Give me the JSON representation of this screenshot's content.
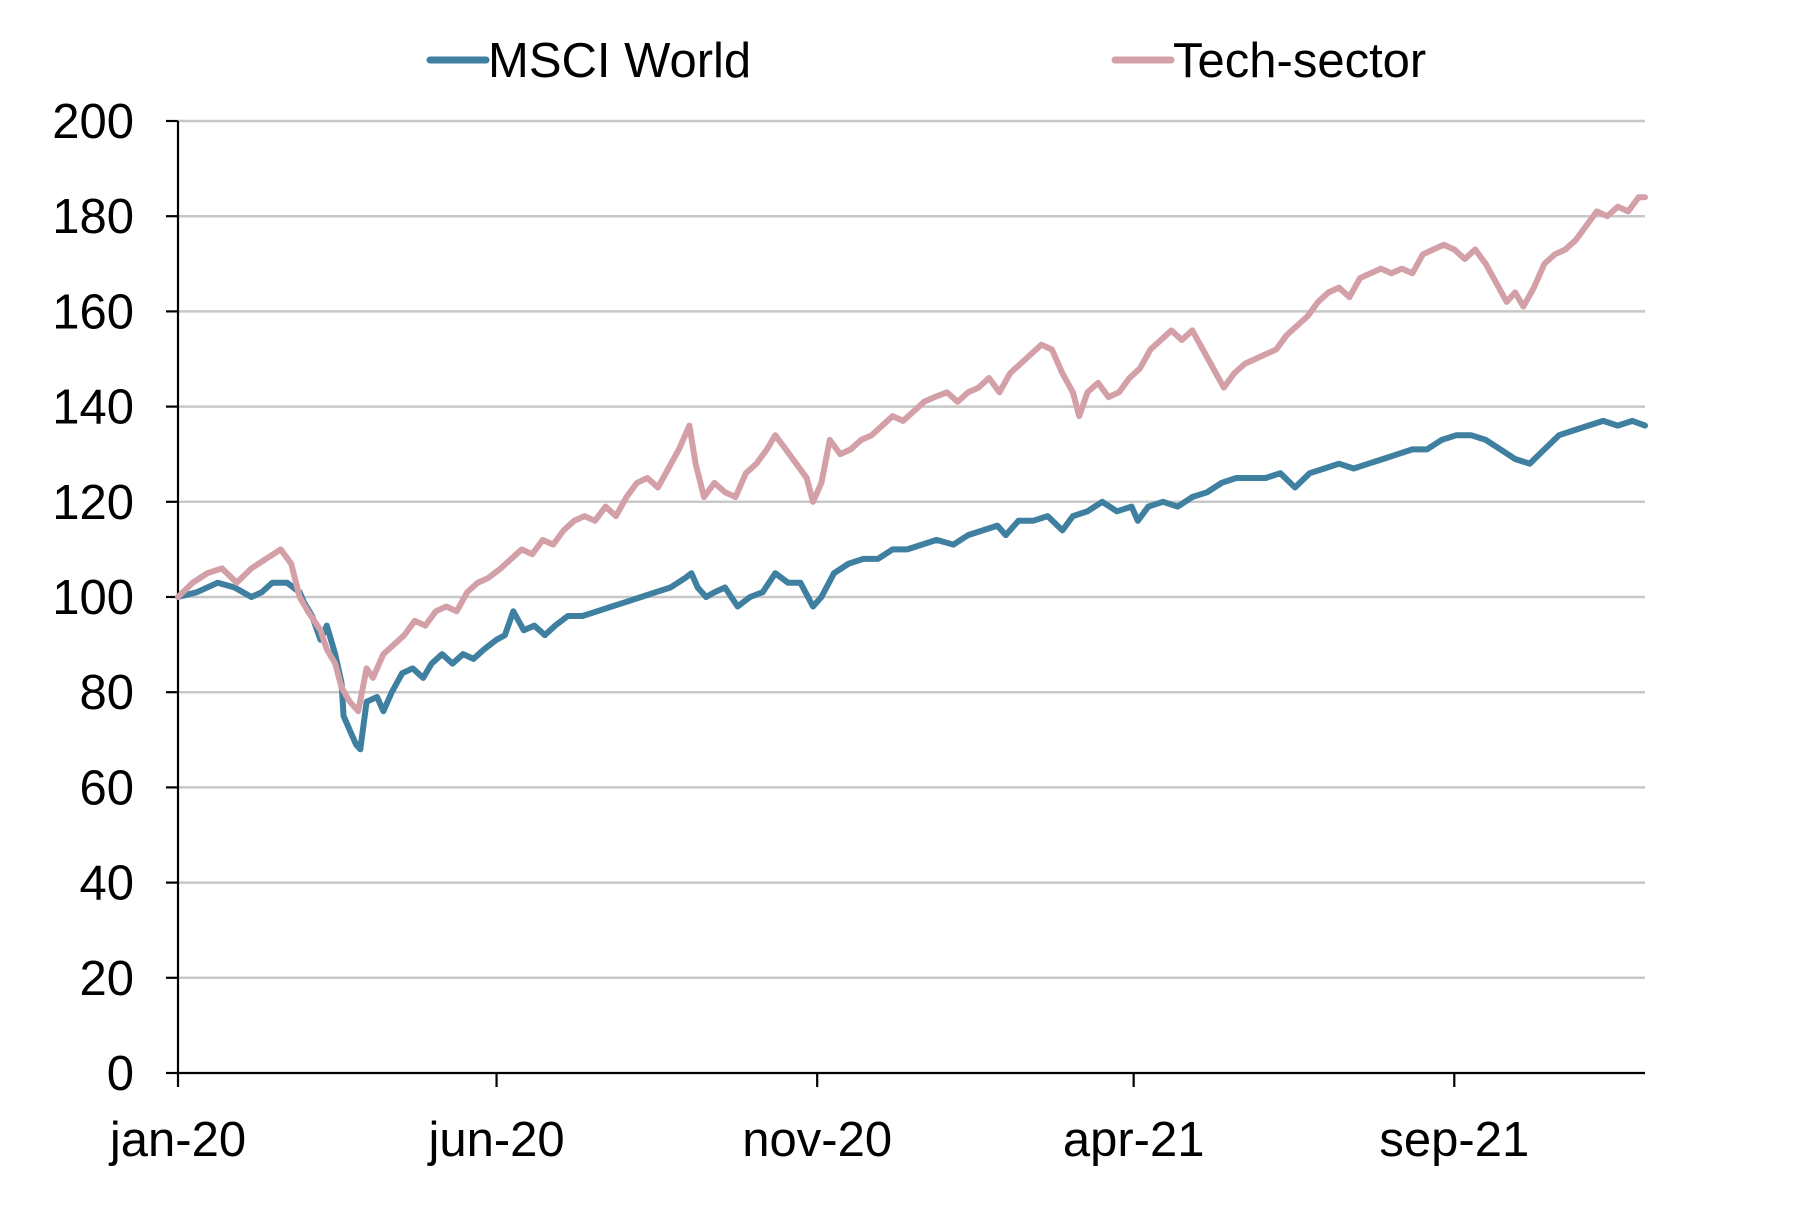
{
  "chart_data": {
    "type": "line",
    "title": "",
    "xlabel": "",
    "ylabel": "",
    "ylim": [
      0,
      200
    ],
    "y_ticks": [
      0,
      20,
      40,
      60,
      80,
      100,
      120,
      140,
      160,
      180,
      200
    ],
    "y_tick_labels": [
      "0",
      "20",
      "40",
      "60",
      "80",
      "100",
      "120",
      "140",
      "160",
      "180",
      "200"
    ],
    "xlim": [
      "2020-01-01",
      "2021-12-01"
    ],
    "x_ticks": [
      "2020-01-01",
      "2020-06-01",
      "2020-11-01",
      "2021-04-01",
      "2021-09-01"
    ],
    "x_tick_labels": [
      "jan-20",
      "jun-20",
      "nov-20",
      "apr-21",
      "sep-21"
    ],
    "grid": "horizontal",
    "legend": "top",
    "series": [
      {
        "name": "MSCI World",
        "color": "#3f7fa0",
        "points": [
          [
            "2020-01-01",
            100
          ],
          [
            "2020-01-10",
            101
          ],
          [
            "2020-01-20",
            103
          ],
          [
            "2020-01-28",
            102
          ],
          [
            "2020-02-05",
            100
          ],
          [
            "2020-02-10",
            101
          ],
          [
            "2020-02-15",
            103
          ],
          [
            "2020-02-22",
            103
          ],
          [
            "2020-02-28",
            101
          ],
          [
            "2020-03-01",
            99
          ],
          [
            "2020-03-05",
            96
          ],
          [
            "2020-03-09",
            91
          ],
          [
            "2020-03-12",
            94
          ],
          [
            "2020-03-16",
            88
          ],
          [
            "2020-03-19",
            82
          ],
          [
            "2020-03-20",
            75
          ],
          [
            "2020-03-23",
            72
          ],
          [
            "2020-03-26",
            69
          ],
          [
            "2020-03-28",
            68
          ],
          [
            "2020-03-31",
            78
          ],
          [
            "2020-04-05",
            79
          ],
          [
            "2020-04-08",
            76
          ],
          [
            "2020-04-12",
            80
          ],
          [
            "2020-04-17",
            84
          ],
          [
            "2020-04-22",
            85
          ],
          [
            "2020-04-27",
            83
          ],
          [
            "2020-05-01",
            86
          ],
          [
            "2020-05-06",
            88
          ],
          [
            "2020-05-11",
            86
          ],
          [
            "2020-05-16",
            88
          ],
          [
            "2020-05-21",
            87
          ],
          [
            "2020-05-26",
            89
          ],
          [
            "2020-06-01",
            91
          ],
          [
            "2020-06-05",
            92
          ],
          [
            "2020-06-09",
            97
          ],
          [
            "2020-06-14",
            93
          ],
          [
            "2020-06-19",
            94
          ],
          [
            "2020-06-24",
            92
          ],
          [
            "2020-06-29",
            94
          ],
          [
            "2020-07-05",
            96
          ],
          [
            "2020-07-12",
            96
          ],
          [
            "2020-07-19",
            97
          ],
          [
            "2020-07-26",
            98
          ],
          [
            "2020-08-02",
            99
          ],
          [
            "2020-08-09",
            100
          ],
          [
            "2020-08-16",
            101
          ],
          [
            "2020-08-23",
            102
          ],
          [
            "2020-08-30",
            104
          ],
          [
            "2020-09-02",
            105
          ],
          [
            "2020-09-05",
            102
          ],
          [
            "2020-09-09",
            100
          ],
          [
            "2020-09-13",
            101
          ],
          [
            "2020-09-18",
            102
          ],
          [
            "2020-09-24",
            98
          ],
          [
            "2020-09-30",
            100
          ],
          [
            "2020-10-06",
            101
          ],
          [
            "2020-10-12",
            105
          ],
          [
            "2020-10-18",
            103
          ],
          [
            "2020-10-24",
            103
          ],
          [
            "2020-10-30",
            98
          ],
          [
            "2020-11-03",
            100
          ],
          [
            "2020-11-09",
            105
          ],
          [
            "2020-11-16",
            107
          ],
          [
            "2020-11-23",
            108
          ],
          [
            "2020-11-30",
            108
          ],
          [
            "2020-12-07",
            110
          ],
          [
            "2020-12-14",
            110
          ],
          [
            "2020-12-21",
            111
          ],
          [
            "2020-12-28",
            112
          ],
          [
            "2021-01-05",
            111
          ],
          [
            "2021-01-12",
            113
          ],
          [
            "2021-01-19",
            114
          ],
          [
            "2021-01-26",
            115
          ],
          [
            "2021-01-30",
            113
          ],
          [
            "2021-02-05",
            116
          ],
          [
            "2021-02-12",
            116
          ],
          [
            "2021-02-19",
            117
          ],
          [
            "2021-02-26",
            114
          ],
          [
            "2021-03-03",
            117
          ],
          [
            "2021-03-10",
            118
          ],
          [
            "2021-03-17",
            120
          ],
          [
            "2021-03-24",
            118
          ],
          [
            "2021-03-31",
            119
          ],
          [
            "2021-04-03",
            116
          ],
          [
            "2021-04-08",
            119
          ],
          [
            "2021-04-15",
            120
          ],
          [
            "2021-04-22",
            119
          ],
          [
            "2021-04-29",
            121
          ],
          [
            "2021-05-06",
            122
          ],
          [
            "2021-05-13",
            124
          ],
          [
            "2021-05-20",
            125
          ],
          [
            "2021-05-27",
            125
          ],
          [
            "2021-06-03",
            125
          ],
          [
            "2021-06-10",
            126
          ],
          [
            "2021-06-17",
            123
          ],
          [
            "2021-06-24",
            126
          ],
          [
            "2021-07-01",
            127
          ],
          [
            "2021-07-08",
            128
          ],
          [
            "2021-07-15",
            127
          ],
          [
            "2021-07-22",
            128
          ],
          [
            "2021-07-29",
            129
          ],
          [
            "2021-08-05",
            130
          ],
          [
            "2021-08-12",
            131
          ],
          [
            "2021-08-19",
            131
          ],
          [
            "2021-08-26",
            133
          ],
          [
            "2021-09-02",
            134
          ],
          [
            "2021-09-09",
            134
          ],
          [
            "2021-09-16",
            133
          ],
          [
            "2021-09-23",
            131
          ],
          [
            "2021-09-30",
            129
          ],
          [
            "2021-10-07",
            128
          ],
          [
            "2021-10-14",
            131
          ],
          [
            "2021-10-21",
            134
          ],
          [
            "2021-10-28",
            135
          ],
          [
            "2021-11-04",
            136
          ],
          [
            "2021-11-11",
            137
          ],
          [
            "2021-11-18",
            136
          ],
          [
            "2021-11-25",
            137
          ],
          [
            "2021-12-01",
            136
          ]
        ]
      },
      {
        "name": "Tech-sector",
        "color": "#d4a0a8",
        "points": [
          [
            "2020-01-01",
            100
          ],
          [
            "2020-01-08",
            103
          ],
          [
            "2020-01-15",
            105
          ],
          [
            "2020-01-22",
            106
          ],
          [
            "2020-01-29",
            103
          ],
          [
            "2020-02-05",
            106
          ],
          [
            "2020-02-12",
            108
          ],
          [
            "2020-02-19",
            110
          ],
          [
            "2020-02-24",
            107
          ],
          [
            "2020-02-28",
            100
          ],
          [
            "2020-03-03",
            97
          ],
          [
            "2020-03-06",
            95
          ],
          [
            "2020-03-09",
            93
          ],
          [
            "2020-03-12",
            89
          ],
          [
            "2020-03-16",
            86
          ],
          [
            "2020-03-19",
            81
          ],
          [
            "2020-03-23",
            78
          ],
          [
            "2020-03-27",
            76
          ],
          [
            "2020-03-31",
            85
          ],
          [
            "2020-04-03",
            83
          ],
          [
            "2020-04-08",
            88
          ],
          [
            "2020-04-13",
            90
          ],
          [
            "2020-04-18",
            92
          ],
          [
            "2020-04-23",
            95
          ],
          [
            "2020-04-28",
            94
          ],
          [
            "2020-05-03",
            97
          ],
          [
            "2020-05-08",
            98
          ],
          [
            "2020-05-13",
            97
          ],
          [
            "2020-05-18",
            101
          ],
          [
            "2020-05-23",
            103
          ],
          [
            "2020-05-28",
            104
          ],
          [
            "2020-06-03",
            106
          ],
          [
            "2020-06-08",
            108
          ],
          [
            "2020-06-13",
            110
          ],
          [
            "2020-06-18",
            109
          ],
          [
            "2020-06-23",
            112
          ],
          [
            "2020-06-28",
            111
          ],
          [
            "2020-07-03",
            114
          ],
          [
            "2020-07-08",
            116
          ],
          [
            "2020-07-13",
            117
          ],
          [
            "2020-07-18",
            116
          ],
          [
            "2020-07-23",
            119
          ],
          [
            "2020-07-28",
            117
          ],
          [
            "2020-08-02",
            121
          ],
          [
            "2020-08-07",
            124
          ],
          [
            "2020-08-12",
            125
          ],
          [
            "2020-08-17",
            123
          ],
          [
            "2020-08-22",
            127
          ],
          [
            "2020-08-27",
            131
          ],
          [
            "2020-09-01",
            136
          ],
          [
            "2020-09-04",
            128
          ],
          [
            "2020-09-08",
            121
          ],
          [
            "2020-09-13",
            124
          ],
          [
            "2020-09-18",
            122
          ],
          [
            "2020-09-23",
            121
          ],
          [
            "2020-09-28",
            126
          ],
          [
            "2020-10-03",
            128
          ],
          [
            "2020-10-08",
            131
          ],
          [
            "2020-10-12",
            134
          ],
          [
            "2020-10-17",
            131
          ],
          [
            "2020-10-22",
            128
          ],
          [
            "2020-10-27",
            125
          ],
          [
            "2020-10-30",
            120
          ],
          [
            "2020-11-03",
            124
          ],
          [
            "2020-11-07",
            133
          ],
          [
            "2020-11-12",
            130
          ],
          [
            "2020-11-17",
            131
          ],
          [
            "2020-11-22",
            133
          ],
          [
            "2020-11-27",
            134
          ],
          [
            "2020-12-02",
            136
          ],
          [
            "2020-12-07",
            138
          ],
          [
            "2020-12-12",
            137
          ],
          [
            "2020-12-17",
            139
          ],
          [
            "2020-12-22",
            141
          ],
          [
            "2020-12-27",
            142
          ],
          [
            "2021-01-02",
            143
          ],
          [
            "2021-01-07",
            141
          ],
          [
            "2021-01-12",
            143
          ],
          [
            "2021-01-17",
            144
          ],
          [
            "2021-01-22",
            146
          ],
          [
            "2021-01-27",
            143
          ],
          [
            "2021-02-01",
            147
          ],
          [
            "2021-02-06",
            149
          ],
          [
            "2021-02-11",
            151
          ],
          [
            "2021-02-16",
            153
          ],
          [
            "2021-02-21",
            152
          ],
          [
            "2021-02-26",
            147
          ],
          [
            "2021-03-03",
            143
          ],
          [
            "2021-03-06",
            138
          ],
          [
            "2021-03-10",
            143
          ],
          [
            "2021-03-15",
            145
          ],
          [
            "2021-03-20",
            142
          ],
          [
            "2021-03-25",
            143
          ],
          [
            "2021-03-30",
            146
          ],
          [
            "2021-04-04",
            148
          ],
          [
            "2021-04-09",
            152
          ],
          [
            "2021-04-14",
            154
          ],
          [
            "2021-04-19",
            156
          ],
          [
            "2021-04-24",
            154
          ],
          [
            "2021-04-29",
            156
          ],
          [
            "2021-05-04",
            152
          ],
          [
            "2021-05-09",
            148
          ],
          [
            "2021-05-14",
            144
          ],
          [
            "2021-05-19",
            147
          ],
          [
            "2021-05-24",
            149
          ],
          [
            "2021-05-29",
            150
          ],
          [
            "2021-06-03",
            151
          ],
          [
            "2021-06-08",
            152
          ],
          [
            "2021-06-13",
            155
          ],
          [
            "2021-06-18",
            157
          ],
          [
            "2021-06-23",
            159
          ],
          [
            "2021-06-28",
            162
          ],
          [
            "2021-07-03",
            164
          ],
          [
            "2021-07-08",
            165
          ],
          [
            "2021-07-13",
            163
          ],
          [
            "2021-07-18",
            167
          ],
          [
            "2021-07-23",
            168
          ],
          [
            "2021-07-28",
            169
          ],
          [
            "2021-08-02",
            168
          ],
          [
            "2021-08-07",
            169
          ],
          [
            "2021-08-12",
            168
          ],
          [
            "2021-08-17",
            172
          ],
          [
            "2021-08-22",
            173
          ],
          [
            "2021-08-27",
            174
          ],
          [
            "2021-09-01",
            173
          ],
          [
            "2021-09-06",
            171
          ],
          [
            "2021-09-11",
            173
          ],
          [
            "2021-09-16",
            170
          ],
          [
            "2021-09-21",
            166
          ],
          [
            "2021-09-26",
            162
          ],
          [
            "2021-09-30",
            164
          ],
          [
            "2021-10-04",
            161
          ],
          [
            "2021-10-09",
            165
          ],
          [
            "2021-10-14",
            170
          ],
          [
            "2021-10-19",
            172
          ],
          [
            "2021-10-24",
            173
          ],
          [
            "2021-10-29",
            175
          ],
          [
            "2021-11-03",
            178
          ],
          [
            "2021-11-08",
            181
          ],
          [
            "2021-11-13",
            180
          ],
          [
            "2021-11-18",
            182
          ],
          [
            "2021-11-23",
            181
          ],
          [
            "2021-11-28",
            184
          ],
          [
            "2021-12-01",
            184
          ]
        ]
      }
    ]
  }
}
